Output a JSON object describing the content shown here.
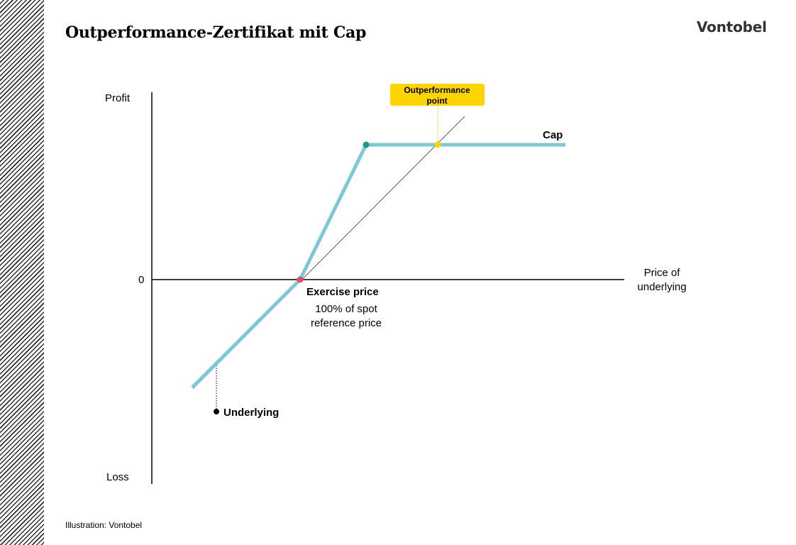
{
  "header": {
    "title": "Outperformance-Zertifikat mit Cap",
    "logo": "Vontobel"
  },
  "diagram": {
    "y_axis_top_label": "Profit",
    "y_axis_bottom_label": "Loss",
    "y_axis_zero_label": "0",
    "x_axis_label_line1": "Price of",
    "x_axis_label_line2": "underlying",
    "exercise_price_title": "Exercise price",
    "exercise_price_line1": "100% of spot",
    "exercise_price_line2": "reference price",
    "cap_label": "Cap",
    "outperformance_line1": "Outperformance",
    "outperformance_line2": "point",
    "underlying_label": "Underlying",
    "colors": {
      "payoff_line": "#7ec8d6",
      "cap_knot": "#1a9a8c",
      "exercise_point": "#e8496c",
      "outperformance": "#ffd400"
    }
  },
  "footer": {
    "caption": "Illustration: Vontobel"
  }
}
